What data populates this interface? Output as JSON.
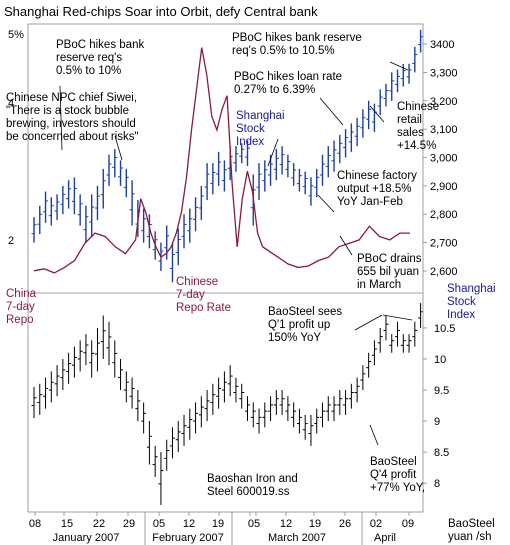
{
  "title": "Shanghai Red-chips Soar into Orbit, defy Central bank",
  "colors": {
    "annotation_black": "#000000",
    "annotation_blue": "#1a1a99",
    "annotation_red": "#8b1a3a",
    "stock_bars": "#1f3fa0",
    "repo_line": "#8b1a3a",
    "baosteel_bars": "#000000",
    "background": "#ffffff"
  },
  "chart_data": [
    {
      "type": "line",
      "series_kind": "ohlc-bars",
      "panel": "top",
      "name_label": [
        "Shanghai",
        "Stock",
        "Index"
      ],
      "right_axis": {
        "ticks": [
          2600,
          2700,
          2800,
          2900,
          3000,
          3100,
          3200,
          3300,
          3400
        ],
        "labels": [
          "2,600",
          "2,700",
          "2,800",
          "2,900",
          "3,000",
          "3,100",
          "3,200",
          "3,300",
          "3400"
        ],
        "range": [
          2540,
          3460
        ]
      },
      "bars": [
        {
          "i": 0,
          "lo": 2700,
          "hi": 2790
        },
        {
          "i": 1,
          "lo": 2730,
          "hi": 2830
        },
        {
          "i": 2,
          "lo": 2770,
          "hi": 2880
        },
        {
          "i": 3,
          "lo": 2760,
          "hi": 2860
        },
        {
          "i": 4,
          "lo": 2780,
          "hi": 2870
        },
        {
          "i": 5,
          "lo": 2800,
          "hi": 2900
        },
        {
          "i": 6,
          "lo": 2820,
          "hi": 2920
        },
        {
          "i": 7,
          "lo": 2800,
          "hi": 2930
        },
        {
          "i": 8,
          "lo": 2760,
          "hi": 2870
        },
        {
          "i": 9,
          "lo": 2700,
          "hi": 2830
        },
        {
          "i": 10,
          "lo": 2720,
          "hi": 2870
        },
        {
          "i": 11,
          "lo": 2780,
          "hi": 2900
        },
        {
          "i": 12,
          "lo": 2820,
          "hi": 2960
        },
        {
          "i": 13,
          "lo": 2900,
          "hi": 3010
        },
        {
          "i": 14,
          "lo": 2930,
          "hi": 3030
        },
        {
          "i": 15,
          "lo": 2900,
          "hi": 2990
        },
        {
          "i": 16,
          "lo": 2860,
          "hi": 2960
        },
        {
          "i": 17,
          "lo": 2760,
          "hi": 2920
        },
        {
          "i": 18,
          "lo": 2720,
          "hi": 2850
        },
        {
          "i": 19,
          "lo": 2700,
          "hi": 2820
        },
        {
          "i": 20,
          "lo": 2680,
          "hi": 2800
        },
        {
          "i": 21,
          "lo": 2640,
          "hi": 2740
        },
        {
          "i": 22,
          "lo": 2600,
          "hi": 2700
        },
        {
          "i": 23,
          "lo": 2640,
          "hi": 2760
        },
        {
          "i": 24,
          "lo": 2560,
          "hi": 2700
        },
        {
          "i": 25,
          "lo": 2620,
          "hi": 2750
        },
        {
          "i": 26,
          "lo": 2680,
          "hi": 2800
        },
        {
          "i": 27,
          "lo": 2700,
          "hi": 2820
        },
        {
          "i": 28,
          "lo": 2740,
          "hi": 2860
        },
        {
          "i": 29,
          "lo": 2780,
          "hi": 2900
        },
        {
          "i": 30,
          "lo": 2850,
          "hi": 2980
        },
        {
          "i": 31,
          "lo": 2870,
          "hi": 2980
        },
        {
          "i": 32,
          "lo": 2900,
          "hi": 3020
        },
        {
          "i": 33,
          "lo": 2880,
          "hi": 2990
        },
        {
          "i": 34,
          "lo": 2920,
          "hi": 3040
        },
        {
          "i": 35,
          "lo": 2950,
          "hi": 3040
        },
        {
          "i": 36,
          "lo": 2980,
          "hi": 3050
        },
        {
          "i": 37,
          "lo": 2970,
          "hi": 3060
        },
        {
          "i": 38,
          "lo": 2760,
          "hi": 2940
        },
        {
          "i": 39,
          "lo": 2850,
          "hi": 2980
        },
        {
          "i": 40,
          "lo": 2880,
          "hi": 2990
        },
        {
          "i": 41,
          "lo": 2900,
          "hi": 3010
        },
        {
          "i": 42,
          "lo": 2920,
          "hi": 3030
        },
        {
          "i": 43,
          "lo": 2940,
          "hi": 3040
        },
        {
          "i": 44,
          "lo": 2930,
          "hi": 3010
        },
        {
          "i": 45,
          "lo": 2900,
          "hi": 2980
        },
        {
          "i": 46,
          "lo": 2880,
          "hi": 2960
        },
        {
          "i": 47,
          "lo": 2870,
          "hi": 2950
        },
        {
          "i": 48,
          "lo": 2830,
          "hi": 2930
        },
        {
          "i": 49,
          "lo": 2860,
          "hi": 2960
        },
        {
          "i": 50,
          "lo": 2900,
          "hi": 3010
        },
        {
          "i": 51,
          "lo": 2930,
          "hi": 3040
        },
        {
          "i": 52,
          "lo": 2950,
          "hi": 3060
        },
        {
          "i": 53,
          "lo": 2980,
          "hi": 3080
        },
        {
          "i": 54,
          "lo": 3000,
          "hi": 3100
        },
        {
          "i": 55,
          "lo": 3020,
          "hi": 3120
        },
        {
          "i": 56,
          "lo": 3040,
          "hi": 3140
        },
        {
          "i": 57,
          "lo": 3070,
          "hi": 3170
        },
        {
          "i": 58,
          "lo": 3100,
          "hi": 3200
        },
        {
          "i": 59,
          "lo": 3090,
          "hi": 3190
        },
        {
          "i": 60,
          "lo": 3150,
          "hi": 3240
        },
        {
          "i": 61,
          "lo": 3180,
          "hi": 3260
        },
        {
          "i": 62,
          "lo": 3200,
          "hi": 3300
        },
        {
          "i": 63,
          "lo": 3230,
          "hi": 3310
        },
        {
          "i": 64,
          "lo": 3250,
          "hi": 3330
        },
        {
          "i": 65,
          "lo": 3260,
          "hi": 3330
        },
        {
          "i": 66,
          "lo": 3300,
          "hi": 3390
        },
        {
          "i": 67,
          "lo": 3370,
          "hi": 3450
        }
      ]
    },
    {
      "type": "line",
      "panel": "top",
      "name_label": [
        "Chinese",
        "7-day",
        "Repo Rate"
      ],
      "left_axis": {
        "ticks": [
          2,
          4,
          5
        ],
        "labels": [
          "2",
          "4",
          "5%"
        ],
        "range": [
          1.3,
          5.1
        ]
      },
      "points": [
        [
          0,
          1.55
        ],
        [
          2,
          1.58
        ],
        [
          4,
          1.52
        ],
        [
          6,
          1.6
        ],
        [
          8,
          1.7
        ],
        [
          10,
          1.95
        ],
        [
          12,
          2.1
        ],
        [
          14,
          2.05
        ],
        [
          16,
          1.9
        ],
        [
          18,
          1.8
        ],
        [
          20,
          2.0
        ],
        [
          21,
          2.6
        ],
        [
          22,
          2.4
        ],
        [
          23,
          2.1
        ],
        [
          24,
          1.9
        ],
        [
          25,
          1.75
        ],
        [
          26,
          1.8
        ],
        [
          27,
          1.9
        ],
        [
          28,
          2.1
        ],
        [
          29,
          2.4
        ],
        [
          30,
          2.9
        ],
        [
          31,
          3.6
        ],
        [
          32,
          4.2
        ],
        [
          33,
          4.8
        ],
        [
          34,
          4.4
        ],
        [
          35,
          3.8
        ],
        [
          36,
          3.6
        ],
        [
          37,
          3.9
        ],
        [
          38,
          4.1
        ],
        [
          39,
          2.8
        ],
        [
          40,
          1.9
        ],
        [
          41,
          2.6
        ],
        [
          42,
          3.0
        ],
        [
          43,
          2.7
        ],
        [
          44,
          2.1
        ],
        [
          45,
          1.9
        ],
        [
          46,
          1.85
        ],
        [
          47,
          1.8
        ],
        [
          48,
          1.75
        ],
        [
          49,
          1.7
        ],
        [
          50,
          1.65
        ],
        [
          52,
          1.6
        ],
        [
          54,
          1.62
        ],
        [
          56,
          1.7
        ],
        [
          58,
          1.75
        ],
        [
          60,
          1.9
        ],
        [
          62,
          1.95
        ],
        [
          64,
          2.0
        ],
        [
          66,
          2.2
        ],
        [
          68,
          2.05
        ],
        [
          70,
          2.0
        ],
        [
          72,
          2.1
        ],
        [
          74,
          2.1
        ]
      ]
    },
    {
      "type": "line",
      "series_kind": "ohlc-bars",
      "panel": "bottom",
      "name_label": [
        "Baoshan Iron and",
        "Steel 600019.ss"
      ],
      "right_axis": {
        "ticks": [
          8,
          8.5,
          9,
          9.5,
          10,
          10.5
        ],
        "labels": [
          "8",
          "8.5",
          "9",
          "9.5",
          "10",
          "10.5"
        ],
        "range": [
          7.6,
          10.95
        ],
        "unit_label": [
          "BaoSteel",
          "yuan /sh"
        ]
      },
      "bars": [
        {
          "i": 0,
          "lo": 9.05,
          "hi": 9.55
        },
        {
          "i": 1,
          "lo": 9.1,
          "hi": 9.6
        },
        {
          "i": 2,
          "lo": 9.2,
          "hi": 9.7
        },
        {
          "i": 3,
          "lo": 9.3,
          "hi": 9.8
        },
        {
          "i": 4,
          "lo": 9.4,
          "hi": 9.9
        },
        {
          "i": 5,
          "lo": 9.5,
          "hi": 10.0
        },
        {
          "i": 6,
          "lo": 9.6,
          "hi": 10.1
        },
        {
          "i": 7,
          "lo": 9.7,
          "hi": 10.2
        },
        {
          "i": 8,
          "lo": 9.8,
          "hi": 10.3
        },
        {
          "i": 9,
          "lo": 9.9,
          "hi": 10.4
        },
        {
          "i": 10,
          "lo": 9.7,
          "hi": 10.3
        },
        {
          "i": 11,
          "lo": 9.8,
          "hi": 10.5
        },
        {
          "i": 12,
          "lo": 10.0,
          "hi": 10.7
        },
        {
          "i": 13,
          "lo": 9.9,
          "hi": 10.6
        },
        {
          "i": 14,
          "lo": 9.7,
          "hi": 10.3
        },
        {
          "i": 15,
          "lo": 9.5,
          "hi": 10.0
        },
        {
          "i": 16,
          "lo": 9.3,
          "hi": 9.8
        },
        {
          "i": 17,
          "lo": 9.2,
          "hi": 9.7
        },
        {
          "i": 18,
          "lo": 9.0,
          "hi": 9.5
        },
        {
          "i": 19,
          "lo": 8.8,
          "hi": 9.3
        },
        {
          "i": 20,
          "lo": 8.3,
          "hi": 9.0
        },
        {
          "i": 21,
          "lo": 8.1,
          "hi": 8.6
        },
        {
          "i": 22,
          "lo": 7.65,
          "hi": 8.5
        },
        {
          "i": 23,
          "lo": 8.2,
          "hi": 8.7
        },
        {
          "i": 24,
          "lo": 8.4,
          "hi": 8.9
        },
        {
          "i": 25,
          "lo": 8.5,
          "hi": 9.0
        },
        {
          "i": 26,
          "lo": 8.6,
          "hi": 9.1
        },
        {
          "i": 27,
          "lo": 8.7,
          "hi": 9.2
        },
        {
          "i": 28,
          "lo": 8.8,
          "hi": 9.3
        },
        {
          "i": 29,
          "lo": 8.9,
          "hi": 9.4
        },
        {
          "i": 30,
          "lo": 9.0,
          "hi": 9.5
        },
        {
          "i": 31,
          "lo": 9.1,
          "hi": 9.6
        },
        {
          "i": 32,
          "lo": 9.2,
          "hi": 9.7
        },
        {
          "i": 33,
          "lo": 9.3,
          "hi": 9.8
        },
        {
          "i": 34,
          "lo": 9.4,
          "hi": 9.9
        },
        {
          "i": 35,
          "lo": 9.3,
          "hi": 9.7
        },
        {
          "i": 36,
          "lo": 9.2,
          "hi": 9.6
        },
        {
          "i": 37,
          "lo": 9.0,
          "hi": 9.4
        },
        {
          "i": 38,
          "lo": 8.9,
          "hi": 9.3
        },
        {
          "i": 39,
          "lo": 8.8,
          "hi": 9.2
        },
        {
          "i": 40,
          "lo": 8.9,
          "hi": 9.3
        },
        {
          "i": 41,
          "lo": 9.0,
          "hi": 9.4
        },
        {
          "i": 42,
          "lo": 9.1,
          "hi": 9.5
        },
        {
          "i": 43,
          "lo": 9.1,
          "hi": 9.5
        },
        {
          "i": 44,
          "lo": 9.0,
          "hi": 9.4
        },
        {
          "i": 45,
          "lo": 8.9,
          "hi": 9.3
        },
        {
          "i": 46,
          "lo": 8.8,
          "hi": 9.2
        },
        {
          "i": 47,
          "lo": 8.7,
          "hi": 9.1
        },
        {
          "i": 48,
          "lo": 8.6,
          "hi": 9.1
        },
        {
          "i": 49,
          "lo": 8.8,
          "hi": 9.2
        },
        {
          "i": 50,
          "lo": 8.9,
          "hi": 9.3
        },
        {
          "i": 51,
          "lo": 9.0,
          "hi": 9.4
        },
        {
          "i": 52,
          "lo": 9.0,
          "hi": 9.4
        },
        {
          "i": 53,
          "lo": 9.1,
          "hi": 9.5
        },
        {
          "i": 54,
          "lo": 9.1,
          "hi": 9.5
        },
        {
          "i": 55,
          "lo": 9.2,
          "hi": 9.6
        },
        {
          "i": 56,
          "lo": 9.3,
          "hi": 9.7
        },
        {
          "i": 57,
          "lo": 9.5,
          "hi": 9.9
        },
        {
          "i": 58,
          "lo": 9.7,
          "hi": 10.1
        },
        {
          "i": 59,
          "lo": 9.9,
          "hi": 10.3
        },
        {
          "i": 60,
          "lo": 10.1,
          "hi": 10.5
        },
        {
          "i": 61,
          "lo": 10.3,
          "hi": 10.7
        },
        {
          "i": 62,
          "lo": 10.1,
          "hi": 10.4
        },
        {
          "i": 63,
          "lo": 10.2,
          "hi": 10.6
        },
        {
          "i": 64,
          "lo": 10.1,
          "hi": 10.4
        },
        {
          "i": 65,
          "lo": 10.1,
          "hi": 10.4
        },
        {
          "i": 66,
          "lo": 10.2,
          "hi": 10.6
        },
        {
          "i": 67,
          "lo": 10.5,
          "hi": 10.9
        }
      ]
    }
  ],
  "x_axis": {
    "day_ticks": [
      "08",
      "15",
      "22",
      "29",
      "05",
      "12",
      "19",
      "26",
      "05",
      "12",
      "19",
      "26",
      "02",
      "09"
    ],
    "months": [
      "January 2007",
      "February 2007",
      "March 2007",
      "April"
    ]
  },
  "annotations": {
    "a_pboc_bank_5_10": [
      "PBoC hikes bank",
      "reserve req's",
      "0.5% to 10%"
    ],
    "a_npc_siwei": [
      "Chinese NPC chief Siwei,",
      "\"There is a stock bubble",
      "brewing, investors should",
      "be concerned about risks\""
    ],
    "a_pboc_bank_10_5": [
      "PBoC hikes bank reserve",
      "req's 0.5% to 10.5%"
    ],
    "a_pboc_loan": [
      "PBoC hikes loan rate",
      "0.27% to 6.39%"
    ],
    "a_shanghai_label": [
      "Shanghai",
      "Stock",
      "Index"
    ],
    "a_retail": [
      "Chinese",
      "retail",
      "sales",
      "+14.5%"
    ],
    "a_factory": [
      "Chinese factory",
      "output +18.5%",
      "YoY Jan-Feb"
    ],
    "a_china_repo": [
      "China",
      "7-day",
      "Repo"
    ],
    "a_repo_rate": [
      "Chinese",
      "7-day",
      "Repo Rate"
    ],
    "a_pboc_drains": [
      "PBoC drains",
      "655 bil yuan",
      "in March"
    ],
    "a_shanghai_right": [
      "Shanghai",
      "Stock",
      "Index"
    ],
    "a_baosteel_q1": [
      "BaoSteel sees",
      "Q'1 profit up",
      "150% YoY"
    ],
    "a_baoshan": [
      "Baoshan Iron and",
      "Steel 600019.ss"
    ],
    "a_baosteel_q4": [
      "BaoSteel",
      "Q'4 profit",
      "+77% YoY,"
    ],
    "a_baosteel_unit": [
      "BaoSteel",
      "yuan /sh"
    ]
  }
}
